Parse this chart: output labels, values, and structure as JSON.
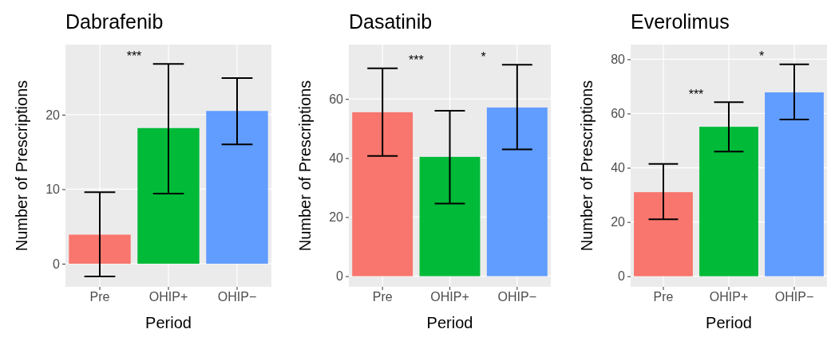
{
  "chart_data": [
    {
      "type": "bar",
      "title": "Dabrafenib",
      "xlabel": "Period",
      "ylabel": "Number of Prescriptions",
      "categories": [
        "Pre",
        "OHIP+",
        "OHIP−"
      ],
      "values": [
        3.9,
        18.2,
        20.5
      ],
      "colors": [
        "#f8766d",
        "#00ba38",
        "#619cff"
      ],
      "errors": [
        [
          -1.7,
          9.6
        ],
        [
          9.4,
          26.8
        ],
        [
          16.0,
          24.9
        ]
      ],
      "ylim": [
        -3.1,
        29.4
      ],
      "yticks": [
        0,
        10,
        20
      ],
      "grid": true,
      "annotations": [
        "***"
      ]
    },
    {
      "type": "bar",
      "title": "Dasatinib",
      "xlabel": "Period",
      "ylabel": "Number of Prescriptions",
      "categories": [
        "Pre",
        "OHIP+",
        "OHIP−"
      ],
      "values": [
        55.5,
        40.4,
        57.1
      ],
      "colors": [
        "#f8766d",
        "#00ba38",
        "#619cff"
      ],
      "errors": [
        [
          40.7,
          70.4
        ],
        [
          24.6,
          56.0
        ],
        [
          42.9,
          71.6
        ]
      ],
      "ylim": [
        -3.6,
        78.4
      ],
      "yticks": [
        0,
        20,
        40,
        60
      ],
      "grid": true,
      "annotations": [
        "***",
        "*"
      ]
    },
    {
      "type": "bar",
      "title": "Everolimus",
      "xlabel": "Period",
      "ylabel": "Number of Prescriptions",
      "categories": [
        "Pre",
        "OHIP+",
        "OHIP−"
      ],
      "values": [
        31.0,
        55.1,
        67.8
      ],
      "colors": [
        "#f8766d",
        "#00ba38",
        "#619cff"
      ],
      "errors": [
        [
          21.0,
          41.4
        ],
        [
          46.0,
          64.2
        ],
        [
          57.8,
          78.1
        ]
      ],
      "ylim": [
        -3.9,
        85.4
      ],
      "yticks": [
        0,
        20,
        40,
        60,
        80
      ],
      "grid": true,
      "annotations": [
        "***",
        "*"
      ]
    }
  ]
}
